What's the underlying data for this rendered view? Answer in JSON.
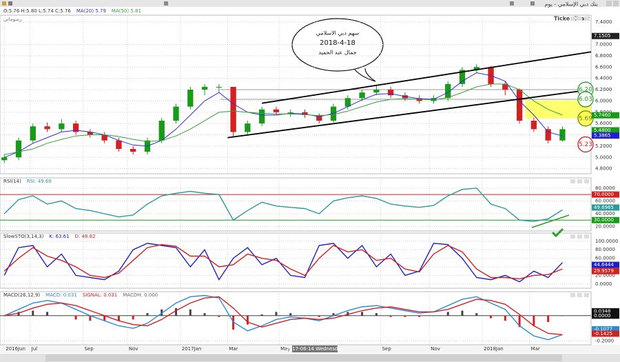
{
  "header": {
    "title": "بنك دبي الإسلامي - يوم",
    "logo": "TickerChart",
    "drawings": "رسوماتي"
  },
  "chart_data": [
    {
      "type": "candlestick",
      "title": "O:5.76 H:5.80 L:5.74 C:5.76",
      "up_color": "#1a9a1a",
      "down_color": "#d42020",
      "candles": [
        [
          4.95,
          5.05,
          4.9,
          5.0
        ],
        [
          5.0,
          5.35,
          4.95,
          5.3
        ],
        [
          5.3,
          5.6,
          5.25,
          5.55
        ],
        [
          5.55,
          5.62,
          5.45,
          5.5
        ],
        [
          5.5,
          5.68,
          5.45,
          5.6
        ],
        [
          5.6,
          5.65,
          5.4,
          5.45
        ],
        [
          5.45,
          5.5,
          5.35,
          5.4
        ],
        [
          5.4,
          5.45,
          5.25,
          5.3
        ],
        [
          5.3,
          5.35,
          5.1,
          5.15
        ],
        [
          5.15,
          5.2,
          5.05,
          5.1
        ],
        [
          5.1,
          5.35,
          5.05,
          5.3
        ],
        [
          5.3,
          5.7,
          5.25,
          5.65
        ],
        [
          5.65,
          5.95,
          5.6,
          5.9
        ],
        [
          5.9,
          6.25,
          5.85,
          6.2
        ],
        [
          6.2,
          6.3,
          6.1,
          6.25
        ],
        [
          6.25,
          6.3,
          6.15,
          6.25
        ],
        [
          6.25,
          6.25,
          5.35,
          5.45
        ],
        [
          5.45,
          5.65,
          5.4,
          5.6
        ],
        [
          5.6,
          5.9,
          5.55,
          5.85
        ],
        [
          5.85,
          5.9,
          5.75,
          5.8
        ],
        [
          5.8,
          5.85,
          5.72,
          5.8
        ],
        [
          5.8,
          5.85,
          5.7,
          5.75
        ],
        [
          5.75,
          5.78,
          5.6,
          5.65
        ],
        [
          5.65,
          5.95,
          5.62,
          5.9
        ],
        [
          5.9,
          6.1,
          5.85,
          6.05
        ],
        [
          6.05,
          6.2,
          6.0,
          6.15
        ],
        [
          6.15,
          6.28,
          6.1,
          6.2
        ],
        [
          6.2,
          6.25,
          6.05,
          6.1
        ],
        [
          6.1,
          6.15,
          6.0,
          6.05
        ],
        [
          6.05,
          6.1,
          5.95,
          6.0
        ],
        [
          6.0,
          6.1,
          5.95,
          6.05
        ],
        [
          6.05,
          6.35,
          6.0,
          6.3
        ],
        [
          6.3,
          6.6,
          6.25,
          6.55
        ],
        [
          6.55,
          6.65,
          6.5,
          6.6
        ],
        [
          6.6,
          6.62,
          6.25,
          6.3
        ],
        [
          6.3,
          6.35,
          6.1,
          6.2
        ],
        [
          6.2,
          6.22,
          5.6,
          5.65
        ],
        [
          5.65,
          5.7,
          5.45,
          5.5
        ],
        [
          5.5,
          5.55,
          5.25,
          5.3
        ],
        [
          5.3,
          5.55,
          5.28,
          5.5
        ]
      ],
      "series": [
        {
          "name": "MA(20) 5.79",
          "color": "#3030d0",
          "values": [
            5.0,
            5.1,
            5.25,
            5.35,
            5.45,
            5.48,
            5.45,
            5.4,
            5.3,
            5.22,
            5.2,
            5.3,
            5.5,
            5.75,
            6.0,
            6.15,
            5.95,
            5.8,
            5.75,
            5.75,
            5.78,
            5.77,
            5.72,
            5.78,
            5.9,
            6.02,
            6.12,
            6.13,
            6.08,
            6.04,
            6.03,
            6.15,
            6.35,
            6.5,
            6.45,
            6.35,
            6.0,
            5.75,
            5.45,
            5.38
          ]
        },
        {
          "name": "MA(50) 5.81",
          "color": "#3aa03a",
          "values": [
            5.05,
            5.1,
            5.15,
            5.25,
            5.32,
            5.38,
            5.4,
            5.4,
            5.37,
            5.32,
            5.28,
            5.3,
            5.38,
            5.5,
            5.65,
            5.8,
            5.82,
            5.8,
            5.78,
            5.77,
            5.77,
            5.76,
            5.74,
            5.76,
            5.82,
            5.9,
            5.98,
            6.03,
            6.04,
            6.03,
            6.02,
            6.06,
            6.15,
            6.25,
            6.3,
            6.3,
            6.2,
            6.0,
            5.85,
            5.75
          ]
        }
      ],
      "ylim": [
        4.71,
        7.52
      ],
      "yticks": [
        {
          "value": 4.8,
          "label": "4.8000"
        },
        {
          "value": 5.0,
          "label": "5.0000"
        },
        {
          "value": 5.2,
          "label": "5.2000"
        },
        {
          "value": 5.4,
          "label": "5.4000"
        },
        {
          "value": 5.6,
          "label": "5.6000"
        },
        {
          "value": 5.8,
          "label": "5.8000"
        },
        {
          "value": 6.0,
          "label": "6.0000"
        },
        {
          "value": 6.2,
          "label": "6.2000"
        },
        {
          "value": 6.4,
          "label": "6.4000"
        },
        {
          "value": 6.6,
          "label": "6.6000"
        },
        {
          "value": 6.8,
          "label": "6.8000"
        },
        {
          "value": 7.0,
          "label": "7.0000"
        },
        {
          "value": 7.4,
          "label": "7.4000"
        }
      ],
      "markers": [
        {
          "value": 7.1505,
          "label": "7.1505",
          "color": "#222222"
        },
        {
          "value": 5.746,
          "label": "5.7460",
          "color": "#1a9a1a"
        },
        {
          "value": 5.48,
          "label": "5.4800",
          "color": "#1a9a1a"
        },
        {
          "value": 5.3865,
          "label": "5.3865",
          "color": "#2020d0"
        }
      ],
      "trendlines": [
        {
          "points": [
            [
              18.0,
              5.96
            ],
            [
              41.0,
              6.87
            ]
          ]
        },
        {
          "points": [
            [
              15.6,
              5.35
            ],
            [
              41.0,
              6.2
            ]
          ]
        }
      ],
      "hlines": [
        {
          "value": 6.2,
          "from": 15.1
        },
        {
          "value": 6.03,
          "from": 15.1
        }
      ],
      "zone": {
        "from": 36.4,
        "to": 41.0,
        "low": 5.69,
        "high": 6.01,
        "color": "#ffff55"
      },
      "circles": [
        {
          "value": 6.2,
          "label": "6.20",
          "color": "#2e9a2e"
        },
        {
          "value": 6.03,
          "label": "6.03",
          "color": "#2e9a2e"
        },
        {
          "value": 5.69,
          "label": "5.69",
          "color": "#6a8a00"
        },
        {
          "value": 5.23,
          "label": "5.23",
          "color": "#d42020"
        }
      ],
      "annotations": [
        "سهم دبي الاسلامي",
        "2018-4-18",
        "جمال عبد الحميد"
      ]
    },
    {
      "type": "line",
      "title": "RSI(14)",
      "series": [
        {
          "name": "RSI: 49.69",
          "color": "#2a9a9a",
          "values": [
            40,
            62,
            68,
            55,
            60,
            48,
            45,
            40,
            35,
            38,
            55,
            68,
            72,
            75,
            72,
            70,
            30,
            45,
            58,
            52,
            50,
            48,
            40,
            60,
            65,
            68,
            64,
            55,
            52,
            50,
            53,
            68,
            78,
            80,
            55,
            48,
            30,
            28,
            32,
            46
          ]
        }
      ],
      "ylim": [
        13,
        96
      ],
      "yticks": [
        {
          "value": 20,
          "label": "20.0000"
        },
        {
          "value": 40,
          "label": "40.0000"
        },
        {
          "value": 60,
          "label": "60.0000"
        },
        {
          "value": 80,
          "label": "80.0000"
        }
      ],
      "levels": [
        {
          "value": 70,
          "color": "#d42020"
        },
        {
          "value": 30,
          "color": "#1a9a1a"
        }
      ],
      "markers": [
        {
          "value": 70,
          "label": "70.0000",
          "color": "#d42020"
        },
        {
          "value": 49.6965,
          "label": "49.6965",
          "color": "#2a9a9a"
        },
        {
          "value": 30,
          "label": "30.0000",
          "color": "#1a9a1a"
        }
      ]
    },
    {
      "type": "line",
      "title": "SlowSTO(3,14,3)",
      "series": [
        {
          "name": "K: 63.61",
          "color": "#2020c0",
          "values": [
            20,
            85,
            90,
            40,
            70,
            20,
            15,
            10,
            30,
            80,
            95,
            90,
            85,
            40,
            80,
            10,
            60,
            85,
            45,
            60,
            20,
            15,
            90,
            95,
            60,
            90,
            40,
            70,
            20,
            30,
            95,
            92,
            60,
            15,
            10,
            20,
            5,
            30,
            15,
            50
          ]
        },
        {
          "name": "D: 48.82",
          "color": "#d42020",
          "values": [
            30,
            60,
            85,
            65,
            55,
            40,
            20,
            15,
            25,
            55,
            85,
            92,
            88,
            65,
            65,
            40,
            45,
            70,
            60,
            55,
            35,
            20,
            60,
            90,
            75,
            80,
            55,
            60,
            35,
            28,
            70,
            90,
            75,
            35,
            15,
            15,
            12,
            20,
            22,
            35
          ]
        }
      ],
      "ylim": [
        -10,
        119
      ],
      "yticks": [
        {
          "value": 0,
          "label": "0.0000"
        },
        {
          "value": 20,
          "label": "20.0000"
        },
        {
          "value": 40,
          "label": "40.0000"
        },
        {
          "value": 60,
          "label": "60.0000"
        },
        {
          "value": 80,
          "label": "80.0000"
        },
        {
          "value": 100,
          "label": "100.0000"
        }
      ],
      "markers": [
        {
          "value": 44.6444,
          "label": "44.6444",
          "color": "#2020c0"
        },
        {
          "value": 29.9579,
          "label": "29.9579",
          "color": "#d42020"
        }
      ]
    },
    {
      "type": "macd",
      "title": "MACD(26,12,9)",
      "series": [
        {
          "name": "MACD: 0.031",
          "color": "#2a8ad8",
          "values": [
            0.0,
            0.05,
            0.1,
            0.12,
            0.1,
            0.05,
            0.0,
            -0.04,
            -0.08,
            -0.1,
            -0.06,
            0.02,
            0.1,
            0.15,
            0.16,
            0.14,
            -0.05,
            -0.12,
            -0.08,
            -0.03,
            -0.01,
            -0.02,
            -0.04,
            0.0,
            0.04,
            0.07,
            0.08,
            0.06,
            0.04,
            0.02,
            0.03,
            0.08,
            0.13,
            0.15,
            0.1,
            0.05,
            -0.08,
            -0.16,
            -0.19,
            -0.15
          ]
        },
        {
          "name": "SIGNAL: 0.031",
          "color": "#d42020",
          "values": [
            0.0,
            0.02,
            0.06,
            0.09,
            0.1,
            0.08,
            0.04,
            0.0,
            -0.04,
            -0.07,
            -0.08,
            -0.03,
            0.04,
            0.1,
            0.14,
            0.15,
            0.06,
            -0.05,
            -0.09,
            -0.06,
            -0.03,
            -0.02,
            -0.03,
            -0.02,
            0.01,
            0.04,
            0.06,
            0.07,
            0.05,
            0.03,
            0.03,
            0.05,
            0.09,
            0.13,
            0.12,
            0.09,
            0.01,
            -0.08,
            -0.14,
            -0.15
          ]
        }
      ],
      "histogram": {
        "name": "MACDH: 0.000",
        "up_color": "#444444",
        "down_color": "#d42020",
        "values": [
          0,
          0.03,
          0.04,
          0.03,
          0,
          -0.03,
          -0.04,
          -0.04,
          -0.04,
          -0.03,
          0.02,
          0.05,
          0.06,
          0.05,
          0.02,
          -0.01,
          -0.11,
          -0.07,
          0.01,
          0.03,
          0.02,
          0,
          -0.01,
          0.02,
          0.03,
          0.03,
          0.02,
          -0.01,
          -0.01,
          -0.01,
          0,
          0.03,
          0.04,
          0.02,
          -0.02,
          -0.04,
          -0.09,
          -0.08,
          -0.05,
          0
        ]
      },
      "ylim": [
        -0.23,
        0.19
      ],
      "yticks": [
        {
          "value": -0.2,
          "label": "-0.2000"
        }
      ],
      "markers": [
        {
          "value": 0.0348,
          "label": "0.0348",
          "color": "#111111"
        },
        {
          "value": 0,
          "label": "0.0000",
          "color": "#111111"
        },
        {
          "value": -0.1077,
          "label": "-0.1077",
          "color": "#2a8ad8"
        },
        {
          "value": -0.1425,
          "label": "-0.1425",
          "color": "#d42020"
        }
      ],
      "xlim": [
        -0.3,
        41
      ],
      "xticks": [
        {
          "value": 0,
          "label": "2016Jun"
        },
        {
          "value": 1.8,
          "label": "Jul"
        },
        {
          "value": 5.5,
          "label": "Sep"
        },
        {
          "value": 8.6,
          "label": "Nov"
        },
        {
          "value": 12.3,
          "label": "2017Jan"
        },
        {
          "value": 15.6,
          "label": "Mar"
        },
        {
          "value": 19.2,
          "label": "May"
        },
        {
          "value": 26.3,
          "label": "Sep"
        },
        {
          "value": 29.7,
          "label": "Nov"
        },
        {
          "value": 33.4,
          "label": "2018Jan"
        },
        {
          "value": 36.7,
          "label": "Mar"
        }
      ],
      "cursor": {
        "value": 21.7,
        "label": "2017-06-14 Wednesday"
      }
    }
  ]
}
